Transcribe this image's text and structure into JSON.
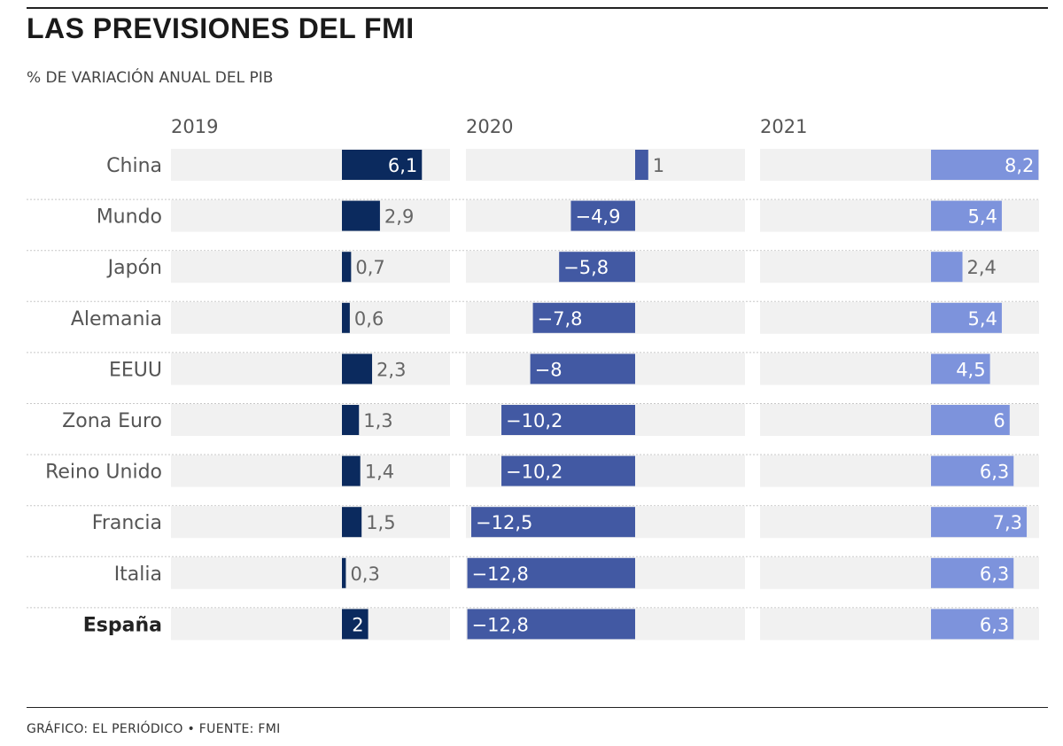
{
  "header": {
    "title": "LAS PREVISIONES DEL FMI",
    "subtitle": "% DE VARIACIÓN ANUAL DEL PIB"
  },
  "footer": {
    "credit": "GRÁFICO: EL PERIÓDICO • FUENTE: FMI"
  },
  "colors": {
    "bar_2019": "#0b2a5e",
    "bar_2020": "#4259a3",
    "bar_2021": "#7d93dc",
    "track": "#f1f1f1",
    "row_separator": "#c8c8c8"
  },
  "chart_data": {
    "type": "bar",
    "title": "LAS PREVISIONES DEL FMI",
    "ylabel": "% DE VARIACIÓN ANUAL DEL PIB",
    "categories": [
      "China",
      "Mundo",
      "Japón",
      "Alemania",
      "EEUU",
      "Zona Euro",
      "Reino Unido",
      "Francia",
      "Italia",
      "España"
    ],
    "highlight": "España",
    "series": [
      {
        "name": "2019",
        "values": [
          6.1,
          2.9,
          0.7,
          0.6,
          2.3,
          1.3,
          1.4,
          1.5,
          0.3,
          2
        ],
        "labels": [
          "6,1",
          "2,9",
          "0,7",
          "0,6",
          "2,3",
          "1,3",
          "1,4",
          "1,5",
          "0,3",
          "2"
        ]
      },
      {
        "name": "2020",
        "values": [
          1,
          -4.9,
          -5.8,
          -7.8,
          -8,
          -10.2,
          -10.2,
          -12.5,
          -12.8,
          -12.8
        ],
        "labels": [
          "1",
          "−4,9",
          "−5,8",
          "−7,8",
          "−8",
          "−10,2",
          "−10,2",
          "−12,5",
          "−12,8",
          "−12,8"
        ]
      },
      {
        "name": "2021",
        "values": [
          8.2,
          5.4,
          2.4,
          5.4,
          4.5,
          6,
          6.3,
          7.3,
          6.3,
          6.3
        ],
        "labels": [
          "8,2",
          "5,4",
          "2,4",
          "5,4",
          "4,5",
          "6",
          "6,3",
          "7,3",
          "6,3",
          "6,3"
        ]
      }
    ]
  }
}
